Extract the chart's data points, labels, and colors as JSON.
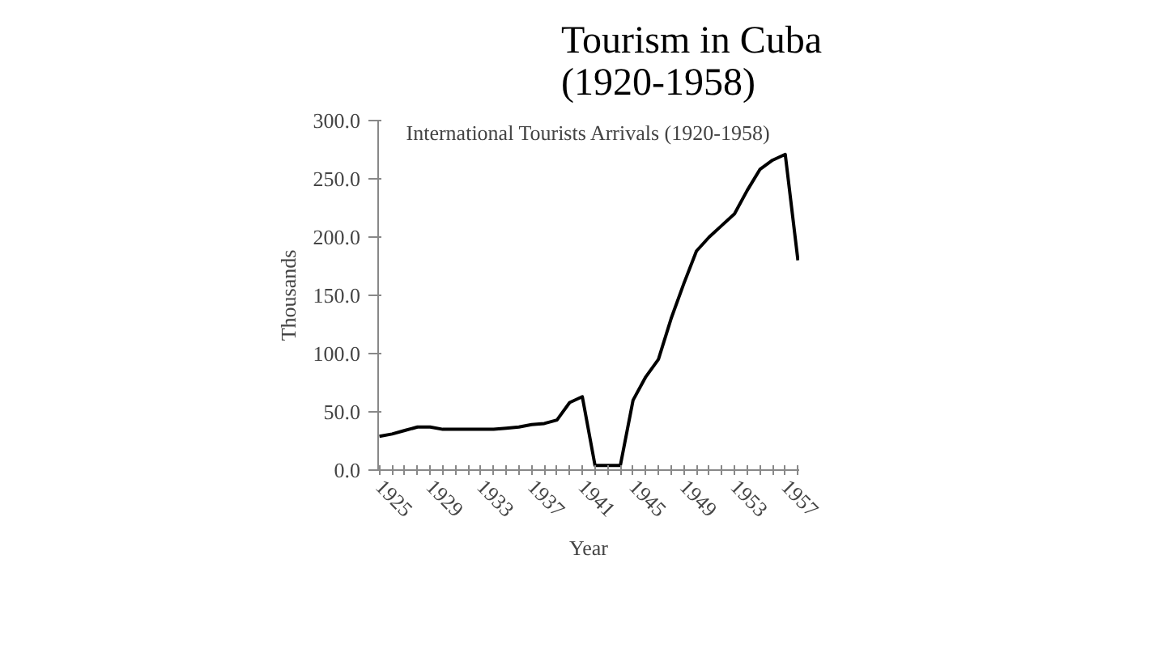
{
  "chart_data": {
    "type": "line",
    "title": "Tourism in Cuba\n(1920-1958)",
    "subtitle": "International Tourists Arrivals (1920-1958)",
    "xlabel": "Year",
    "ylabel": "Thousands",
    "categories": [
      "1925",
      null,
      null,
      null,
      "1929",
      null,
      null,
      null,
      "1933",
      null,
      null,
      null,
      "1937",
      null,
      null,
      null,
      "1941",
      null,
      null,
      null,
      "1945",
      null,
      null,
      null,
      "1949",
      null,
      null,
      null,
      "1953",
      null,
      null,
      null,
      "1957",
      null
    ],
    "series": [
      {
        "color": "#000000",
        "values": [
          29,
          31,
          34,
          37,
          37,
          35,
          35,
          35,
          35,
          35,
          36,
          37,
          39,
          40,
          43,
          58,
          63,
          4,
          4,
          4,
          60,
          80,
          95,
          130,
          160,
          188,
          200,
          210,
          220,
          240,
          258,
          266,
          271,
          180
        ]
      }
    ],
    "ylim": [
      0,
      300
    ],
    "yticks": [
      {
        "value": 0,
        "label": "0.0"
      },
      {
        "value": 50,
        "label": "50.0"
      },
      {
        "value": 100,
        "label": "100.0"
      },
      {
        "value": 150,
        "label": "150.0"
      },
      {
        "value": 200,
        "label": "200.0"
      },
      {
        "value": 250,
        "label": "250.0"
      },
      {
        "value": 300,
        "label": "300.0"
      }
    ],
    "grid": false,
    "marker": "none",
    "line_style": "solid"
  }
}
